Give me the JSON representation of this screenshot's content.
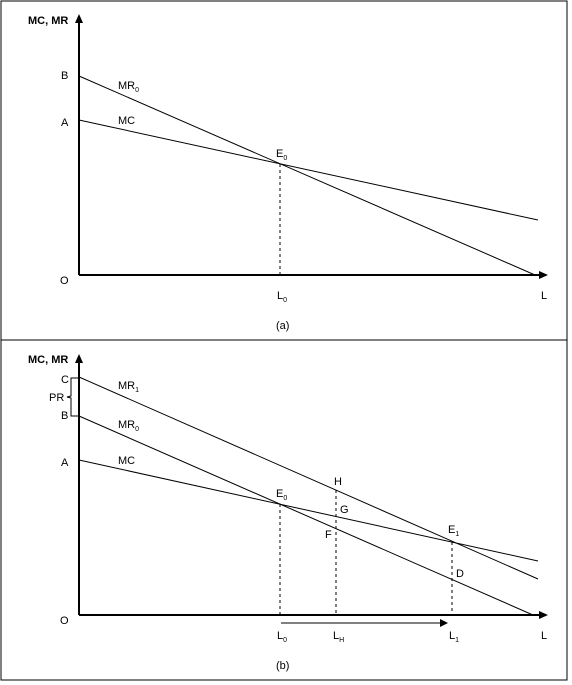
{
  "panel_a": {
    "caption": "(a)",
    "y_axis_title": "MC, MR",
    "x_axis_label": "L",
    "origin": "O",
    "points": {
      "A": "A",
      "B": "B"
    },
    "curve_mr": {
      "base": "MR",
      "sub": "0"
    },
    "curve_mc": "MC",
    "intersection": {
      "base": "E",
      "sub": "0"
    },
    "tick_l0": {
      "base": "L",
      "sub": "0"
    }
  },
  "panel_b": {
    "caption": "(b)",
    "y_axis_title": "MC, MR",
    "x_axis_label": "L",
    "origin": "O",
    "points": {
      "A": "A",
      "B": "B",
      "C": "C",
      "D": "D",
      "F": "F",
      "G": "G",
      "H": "H"
    },
    "bracket_label": "PR",
    "curve_mr1": {
      "base": "MR",
      "sub": "1"
    },
    "curve_mr0": {
      "base": "MR",
      "sub": "0"
    },
    "curve_mc": "MC",
    "e0": {
      "base": "E",
      "sub": "0"
    },
    "e1": {
      "base": "E",
      "sub": "1"
    },
    "tick_l0": {
      "base": "L",
      "sub": "0"
    },
    "tick_lh": {
      "base": "L",
      "sub": "H"
    },
    "tick_l1": {
      "base": "L",
      "sub": "1"
    }
  }
}
